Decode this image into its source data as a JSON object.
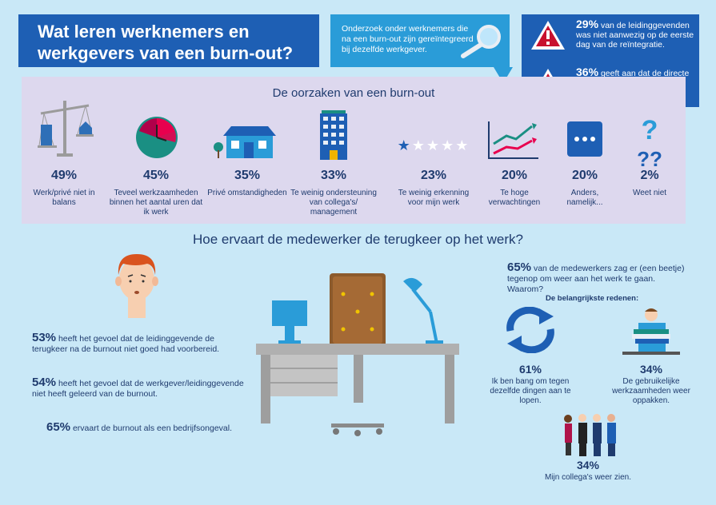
{
  "title": "Wat leren werknemers en werkgevers van een burn-out?",
  "intro": "Onderzoek onder werknemers die na een burn-out zijn gereïntegreerd bij dezelfde werkgever.",
  "alerts": [
    {
      "pct": "29%",
      "text": "van de leidinggevenden was niet aanwezig op de eerste dag van de reïntegratie."
    },
    {
      "pct": "36%",
      "text": "geeft aan dat de directe collega's op de hoogte waren van de terugkeer."
    }
  ],
  "causes_title": "De oorzaken van een burn-out",
  "causes": [
    {
      "pct": "49%",
      "label": "Werk/privé niet in balans",
      "icon": "balance-scale-icon"
    },
    {
      "pct": "45%",
      "label": "Teveel werkzaamheden binnen het aantal uren dat ik werk",
      "icon": "clock-icon"
    },
    {
      "pct": "35%",
      "label": "Privé omstandigheden",
      "icon": "house-icon"
    },
    {
      "pct": "33%",
      "label": "Te weinig ondersteuning van collega's/ management",
      "icon": "office-building-icon"
    },
    {
      "pct": "23%",
      "label": "Te weinig erkenning voor mijn werk",
      "icon": "star-rating-icon"
    },
    {
      "pct": "20%",
      "label": "Te hoge verwachtingen",
      "icon": "trend-chart-icon"
    },
    {
      "pct": "20%",
      "label": "Anders, namelijk...",
      "icon": "ellipsis-icon"
    },
    {
      "pct": "2%",
      "label": "Weet niet",
      "icon": "question-marks-icon"
    }
  ],
  "return_title": "Hoe ervaart de medewerker de terugkeer op het werk?",
  "left_stats": [
    {
      "pct": "53%",
      "text": "heeft het gevoel dat de leidinggevende de terugkeer na de burnout niet goed had voorbereid."
    },
    {
      "pct": "54%",
      "text": "heeft het gevoel dat de werkgever/leidinggevende niet heeft geleerd van de burnout."
    },
    {
      "pct": "65%",
      "text": "ervaart de burnout als een bedrijfsongeval."
    }
  ],
  "right_stat": {
    "pct": "65%",
    "text": "van de medewerkers zag er (een beetje) tegenop om weer aan het werk te gaan. Waarom?"
  },
  "reasons_title": "De belangrijkste redenen:",
  "reasons": [
    {
      "pct": "61%",
      "label": "Ik ben bang om tegen dezelfde dingen aan te lopen."
    },
    {
      "pct": "34%",
      "label": "De gebruikelijke werkzaamheden weer oppakken."
    },
    {
      "pct": "34%",
      "label": "Mijn collega's weer zien."
    }
  ],
  "colors": {
    "dark_blue": "#1e5fb4",
    "light_blue": "#2a9cd8",
    "background": "#c9e8f7",
    "causes_bg": "#ddd8ee",
    "text": "#1f3b6e"
  }
}
